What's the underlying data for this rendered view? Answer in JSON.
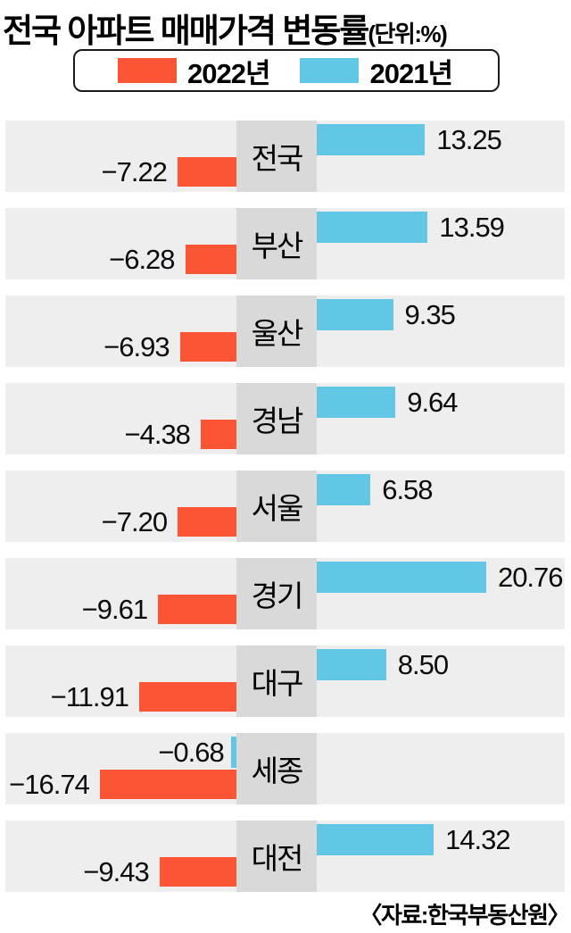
{
  "title": {
    "main": "전국 아파트 매매가격 변동률",
    "unit": "(단위:%)"
  },
  "legend": {
    "items": [
      {
        "label": "2022년",
        "color": "#fb5535"
      },
      {
        "label": "2021년",
        "color": "#61c7e4"
      }
    ]
  },
  "source": "〈자료:한국부동산원〉",
  "colors": {
    "bar_2022": "#fb5535",
    "bar_2021": "#61c7e4",
    "row_band": "#eeeeee",
    "region_column": "#d9d9d9",
    "text": "#0b0b0b",
    "background": "#ffffff"
  },
  "chart_data": {
    "type": "bar",
    "orientation": "horizontal-diverging",
    "title": "전국 아파트 매매가격 변동률",
    "unit_note": "(단위:%)",
    "categories": [
      "전국",
      "부산",
      "울산",
      "경남",
      "서울",
      "경기",
      "대구",
      "세종",
      "대전"
    ],
    "series": [
      {
        "name": "2022년",
        "color": "#fb5535",
        "values": [
          -7.22,
          -6.28,
          -6.93,
          -4.38,
          -7.2,
          -9.61,
          -11.91,
          -16.74,
          -9.43
        ],
        "labels": [
          "−7.22",
          "−6.28",
          "−6.93",
          "−4.38",
          "−7.20",
          "−9.61",
          "−11.91",
          "−16.74",
          "−9.43"
        ]
      },
      {
        "name": "2021년",
        "color": "#61c7e4",
        "values": [
          13.25,
          13.59,
          9.35,
          9.64,
          6.58,
          20.76,
          8.5,
          -0.68,
          14.32
        ],
        "labels": [
          "13.25",
          "13.59",
          "9.35",
          "9.64",
          "6.58",
          "20.76",
          "8.50",
          "−0.68",
          "14.32"
        ]
      }
    ],
    "legend_position": "top",
    "grid": false,
    "value_axis_hidden": true,
    "source": "〈자료:한국부동산원〉"
  }
}
